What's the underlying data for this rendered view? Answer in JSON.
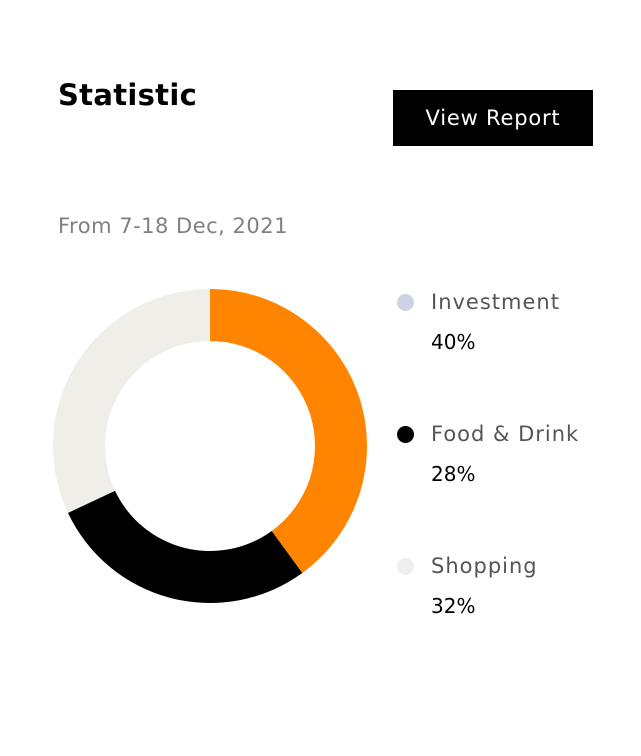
{
  "header": {
    "title": "Statistic",
    "view_report_label": "View Report"
  },
  "subtitle": "From 7-18 Dec, 2021",
  "chart_data": {
    "type": "pie",
    "variant": "donut",
    "slices": [
      {
        "value": 40,
        "color": "#ff8500"
      },
      {
        "value": 28,
        "color": "#000000"
      },
      {
        "value": 32,
        "color": "#efeee9"
      }
    ],
    "start": "top",
    "direction": "clockwise"
  },
  "legend": [
    {
      "label": "Investment",
      "percent": "40%",
      "color": "#cdd3e3"
    },
    {
      "label": "Food & Drink",
      "percent": "28%",
      "color": "#000000"
    },
    {
      "label": "Shopping",
      "percent": "32%",
      "color": "#eeeeee"
    }
  ]
}
